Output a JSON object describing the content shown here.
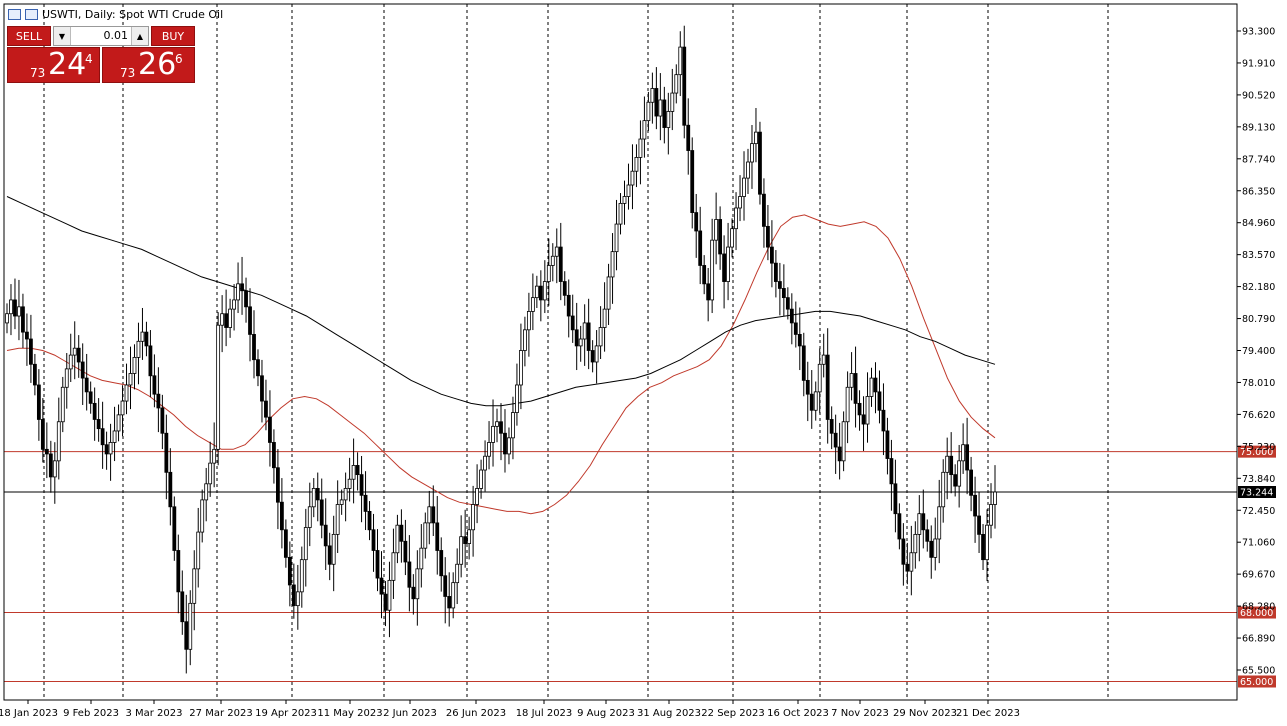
{
  "header": {
    "symbol_title": "USWTI, Daily:  Spot WTI Crude Oil"
  },
  "trade_panel": {
    "sell_label": "SELL",
    "buy_label": "BUY",
    "lot_value": "0.01",
    "sell_price": {
      "small": "73",
      "big": "24",
      "sup": "4"
    },
    "buy_price": {
      "small": "73",
      "big": "26",
      "sup": "6"
    }
  },
  "chart_data": {
    "type": "candlestick",
    "y_ticks": [
      "93.300",
      "91.910",
      "90.520",
      "89.130",
      "87.740",
      "86.350",
      "84.960",
      "83.570",
      "82.180",
      "80.790",
      "79.400",
      "78.010",
      "76.620",
      "75.230",
      "73.840",
      "72.450",
      "71.060",
      "69.670",
      "68.280",
      "66.890",
      "65.500"
    ],
    "x_ticks": [
      "18 Jan 2023",
      "9 Feb 2023",
      "3 Mar 2023",
      "27 Mar 2023",
      "19 Apr 2023",
      "11 May 2023",
      "2 Jun 2023",
      "26 Jun 2023",
      "18 Jul 2023",
      "9 Aug 2023",
      "31 Aug 2023",
      "22 Sep 2023",
      "16 Oct 2023",
      "7 Nov 2023",
      "29 Nov 2023",
      "21 Dec 2023"
    ],
    "ylim": [
      64.7,
      94.0
    ],
    "grid": "vertical dashed",
    "current_price": {
      "label": "73.244",
      "value": 73.244,
      "color": "#000000"
    },
    "horizontal_levels": [
      {
        "label": "75.000",
        "value": 75.0,
        "color": "#c0392b"
      },
      {
        "label": "68.000",
        "value": 68.0,
        "color": "#c0392b"
      },
      {
        "label": "65.000",
        "value": 65.0,
        "color": "#c0392b"
      }
    ],
    "series": [
      {
        "type": "candles",
        "color": "#000000",
        "closes": [
          81.0,
          81.6,
          80.9,
          81.3,
          80.2,
          79.9,
          78.8,
          77.9,
          76.4,
          75.1,
          74.9,
          73.9,
          74.6,
          76.3,
          77.8,
          78.6,
          79.2,
          79.5,
          78.9,
          78.2,
          77.6,
          77.1,
          76.4,
          76.0,
          75.3,
          74.9,
          75.4,
          75.9,
          76.6,
          77.2,
          77.9,
          78.4,
          79.1,
          79.8,
          80.2,
          79.6,
          78.3,
          77.5,
          76.9,
          75.8,
          74.1,
          72.6,
          70.7,
          68.9,
          67.6,
          66.4,
          68.4,
          69.9,
          71.5,
          72.9,
          73.6,
          74.5,
          75.1,
          80.5,
          81.0,
          80.4,
          81.2,
          81.6,
          82.3,
          82.0,
          81.3,
          80.1,
          79.0,
          78.3,
          77.2,
          76.5,
          75.4,
          74.3,
          72.8,
          71.6,
          70.4,
          69.2,
          68.3,
          68.9,
          70.3,
          71.7,
          72.6,
          73.4,
          72.9,
          71.8,
          70.9,
          70.1,
          71.4,
          72.7,
          72.9,
          73.4,
          73.8,
          74.4,
          74.0,
          73.1,
          72.4,
          71.6,
          70.7,
          69.5,
          68.8,
          68.1,
          69.4,
          70.6,
          71.8,
          71.1,
          70.2,
          69.1,
          68.6,
          69.9,
          70.8,
          71.9,
          72.6,
          71.9,
          70.7,
          69.6,
          68.7,
          68.2,
          69.3,
          70.1,
          71.3,
          71.0,
          71.6,
          72.7,
          73.4,
          74.2,
          74.8,
          75.4,
          76.1,
          76.3,
          75.8,
          74.9,
          75.6,
          76.7,
          77.9,
          79.4,
          80.3,
          81.1,
          81.7,
          82.2,
          81.6,
          82.4,
          83.1,
          83.5,
          83.9,
          82.4,
          81.8,
          80.9,
          80.3,
          79.6,
          79.9,
          80.6,
          79.4,
          78.9,
          79.6,
          80.4,
          81.2,
          82.6,
          83.7,
          84.9,
          85.8,
          86.1,
          86.6,
          87.2,
          87.8,
          88.6,
          89.4,
          90.2,
          90.8,
          89.6,
          90.3,
          89.1,
          89.8,
          90.6,
          91.4,
          92.6,
          89.2,
          88.1,
          85.4,
          84.6,
          83.1,
          82.3,
          81.6,
          84.2,
          85.1,
          83.6,
          82.4,
          83.9,
          84.7,
          85.6,
          86.1,
          86.9,
          87.6,
          88.4,
          88.9,
          86.2,
          84.8,
          83.9,
          83.2,
          82.4,
          82.1,
          81.7,
          81.2,
          80.6,
          80.1,
          79.6,
          78.1,
          77.5,
          76.8,
          77.6,
          78.8,
          79.2,
          76.4,
          75.8,
          75.2,
          74.6,
          76.3,
          77.8,
          78.4,
          77.1,
          76.6,
          76.2,
          77.4,
          78.2,
          77.6,
          76.8,
          75.9,
          74.7,
          73.6,
          72.3,
          71.2,
          70.1,
          69.8,
          70.6,
          71.4,
          72.3,
          71.6,
          71.1,
          70.4,
          71.2,
          72.6,
          74.1,
          74.8,
          74.0,
          73.5,
          74.6,
          75.3,
          74.2,
          73.1,
          72.2,
          71.4,
          70.3,
          71.8,
          72.7,
          73.244
        ]
      }
    ],
    "moving_averages": [
      {
        "period": "fast",
        "color": "#c0392b",
        "values": [
          79.4,
          79.5,
          79.5,
          79.4,
          79.2,
          78.9,
          78.6,
          78.3,
          78.1,
          78.0,
          77.9,
          77.7,
          77.4,
          77.0,
          76.6,
          76.1,
          75.7,
          75.4,
          75.1,
          75.1,
          75.3,
          75.8,
          76.4,
          76.9,
          77.3,
          77.4,
          77.3,
          77.0,
          76.6,
          76.2,
          75.8,
          75.3,
          74.8,
          74.3,
          73.9,
          73.6,
          73.3,
          73.0,
          72.8,
          72.7,
          72.6,
          72.5,
          72.4,
          72.4,
          72.3,
          72.4,
          72.7,
          73.1,
          73.7,
          74.4,
          75.3,
          76.1,
          76.9,
          77.4,
          77.8,
          78.0,
          78.3,
          78.5,
          78.7,
          79.0,
          79.6,
          80.5,
          81.6,
          82.8,
          83.9,
          84.8,
          85.2,
          85.3,
          85.1,
          84.9,
          84.8,
          84.9,
          85.0,
          84.8,
          84.3,
          83.4,
          82.2,
          80.8,
          79.5,
          78.2,
          77.2,
          76.5,
          76.0,
          75.6
        ]
      },
      {
        "period": "slow",
        "color": "#000000",
        "values": [
          86.1,
          85.8,
          85.5,
          85.2,
          84.9,
          84.6,
          84.4,
          84.2,
          84.0,
          83.8,
          83.5,
          83.2,
          82.9,
          82.6,
          82.4,
          82.2,
          82.0,
          81.8,
          81.5,
          81.2,
          80.9,
          80.5,
          80.1,
          79.7,
          79.3,
          78.9,
          78.5,
          78.1,
          77.8,
          77.5,
          77.3,
          77.1,
          77.0,
          77.0,
          77.1,
          77.2,
          77.4,
          77.6,
          77.8,
          77.9,
          78.0,
          78.1,
          78.2,
          78.4,
          78.7,
          79.0,
          79.4,
          79.8,
          80.2,
          80.5,
          80.7,
          80.8,
          80.9,
          81.0,
          81.1,
          81.1,
          81.0,
          80.9,
          80.7,
          80.5,
          80.3,
          80.0,
          79.8,
          79.5,
          79.2,
          79.0,
          78.8
        ]
      }
    ]
  }
}
